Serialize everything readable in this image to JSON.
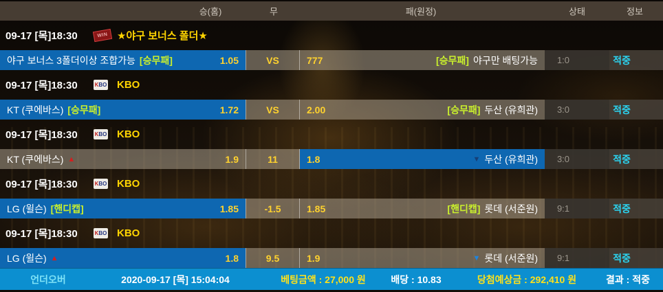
{
  "header": {
    "columns": [
      "승(홈)",
      "무",
      "패(원정)",
      "상태",
      "정보"
    ]
  },
  "icons": {
    "win_stamp": "WIN",
    "kbo_k": "K",
    "kbo_bo": "BO",
    "up_arrow": "▲",
    "down_arrow": "▼"
  },
  "matches": [
    {
      "datetime": "09-17 [목]18:30",
      "league": "★야구 보너스 폴더★",
      "home": {
        "name": "야구 보너스 3폴더이상 조합가능",
        "tag": "[승무패]",
        "odds": "1.05"
      },
      "draw": "VS",
      "away": {
        "odds": "777",
        "tag": "[승무패]",
        "name": "야구만 배팅가능"
      },
      "status": "1:0",
      "info": "적중"
    },
    {
      "datetime": "09-17 [목]18:30",
      "league": "KBO",
      "home": {
        "name": "KT (쿠에바스)",
        "tag": "[승무패]",
        "odds": "1.72"
      },
      "draw": "VS",
      "away": {
        "odds": "2.00",
        "tag": "[승무패]",
        "name": "두산 (유희관)"
      },
      "status": "3:0",
      "info": "적중"
    },
    {
      "datetime": "09-17 [목]18:30",
      "league": "KBO",
      "home": {
        "name": "KT (쿠에바스)",
        "arrow": "▲",
        "odds": "1.9"
      },
      "draw": "11",
      "away": {
        "odds": "1.8",
        "arrow": "▼",
        "name": "두산 (유희관)"
      },
      "status": "3:0",
      "info": "적중"
    },
    {
      "datetime": "09-17 [목]18:30",
      "league": "KBO",
      "home": {
        "name": "LG (윌슨)",
        "tag": "[핸디캡]",
        "odds": "1.85"
      },
      "draw": "-1.5",
      "away": {
        "odds": "1.85",
        "tag": "[핸디캡]",
        "name": "롯데 (서준원)"
      },
      "status": "9:1",
      "info": "적중"
    },
    {
      "datetime": "09-17 [목]18:30",
      "league": "KBO",
      "home": {
        "name": "LG (윌슨)",
        "arrow": "▲",
        "odds": "1.8"
      },
      "draw": "9.5",
      "away": {
        "odds": "1.9",
        "arrow": "▼",
        "name": "롯데 (서준원)"
      },
      "status": "9:1",
      "info": "적중"
    }
  ],
  "footer": {
    "type_label": "언더오버",
    "datetime": "2020-09-17 [목] 15:04:04",
    "bet_amount": "베팅금액 : 27,000 원",
    "odds": "배당 : 10.83",
    "expected_win": "당첨예상금 : 292,410 원",
    "result": "결과 : 적중"
  },
  "colors": {
    "selected_blue": "#0e67b1",
    "footer_blue": "#0c8fd0",
    "hit_cyan": "#2bd5f2",
    "odds_yellow": "#ffd22e",
    "tag_green": "#c9ef2d",
    "header_brown": "#473d33"
  }
}
